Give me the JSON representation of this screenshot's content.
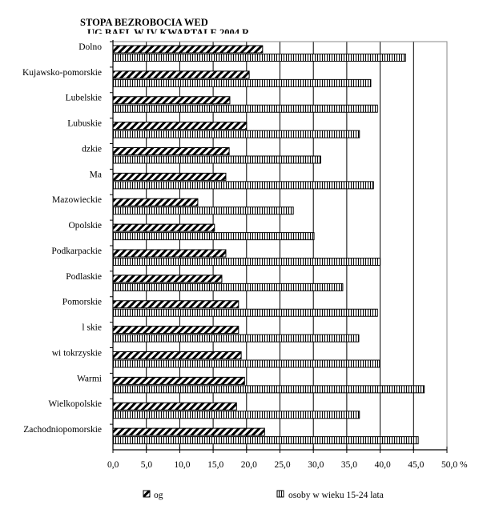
{
  "chart_data": {
    "type": "bar",
    "orientation": "horizontal",
    "title": "STOPA BEZROBOCIA WED",
    "title_line2": "UG BAEL W IV KWARTALE 2004 R.",
    "categories": [
      "Dolno",
      "Kujawsko-pomorskie",
      "Lubelskie",
      "Lubuskie",
      "dzkie",
      "Ma",
      "Mazowieckie",
      "Opolskie",
      "Podkarpackie",
      "Podlaskie",
      "Pomorskie",
      "l skie",
      "wi tokrzyskie",
      "Warmi",
      "Wielkopolskie",
      "Zachodniopomorskie"
    ],
    "series": [
      {
        "name": "og",
        "pattern": "diagonal-hatch",
        "values": [
          22.4,
          20.4,
          17.5,
          20.0,
          17.4,
          16.9,
          12.7,
          15.2,
          16.9,
          16.3,
          18.8,
          18.8,
          19.2,
          19.7,
          18.5,
          22.7
        ]
      },
      {
        "name": "osoby w wieku 15-24 lata",
        "pattern": "vertical-stripes",
        "values": [
          43.8,
          38.6,
          39.6,
          36.9,
          31.1,
          39.0,
          27.0,
          30.1,
          40.0,
          34.4,
          39.6,
          36.8,
          39.9,
          46.6,
          36.9,
          45.7
        ]
      }
    ],
    "xlim": [
      0,
      50
    ],
    "xticks": [
      "0,0",
      "5,0",
      "10,0",
      "15,0",
      "20,0",
      "25,0",
      "30,0",
      "35,0",
      "40,0",
      "45,0",
      "50,0 %"
    ],
    "grid": "vertical",
    "legend_position": "bottom"
  }
}
